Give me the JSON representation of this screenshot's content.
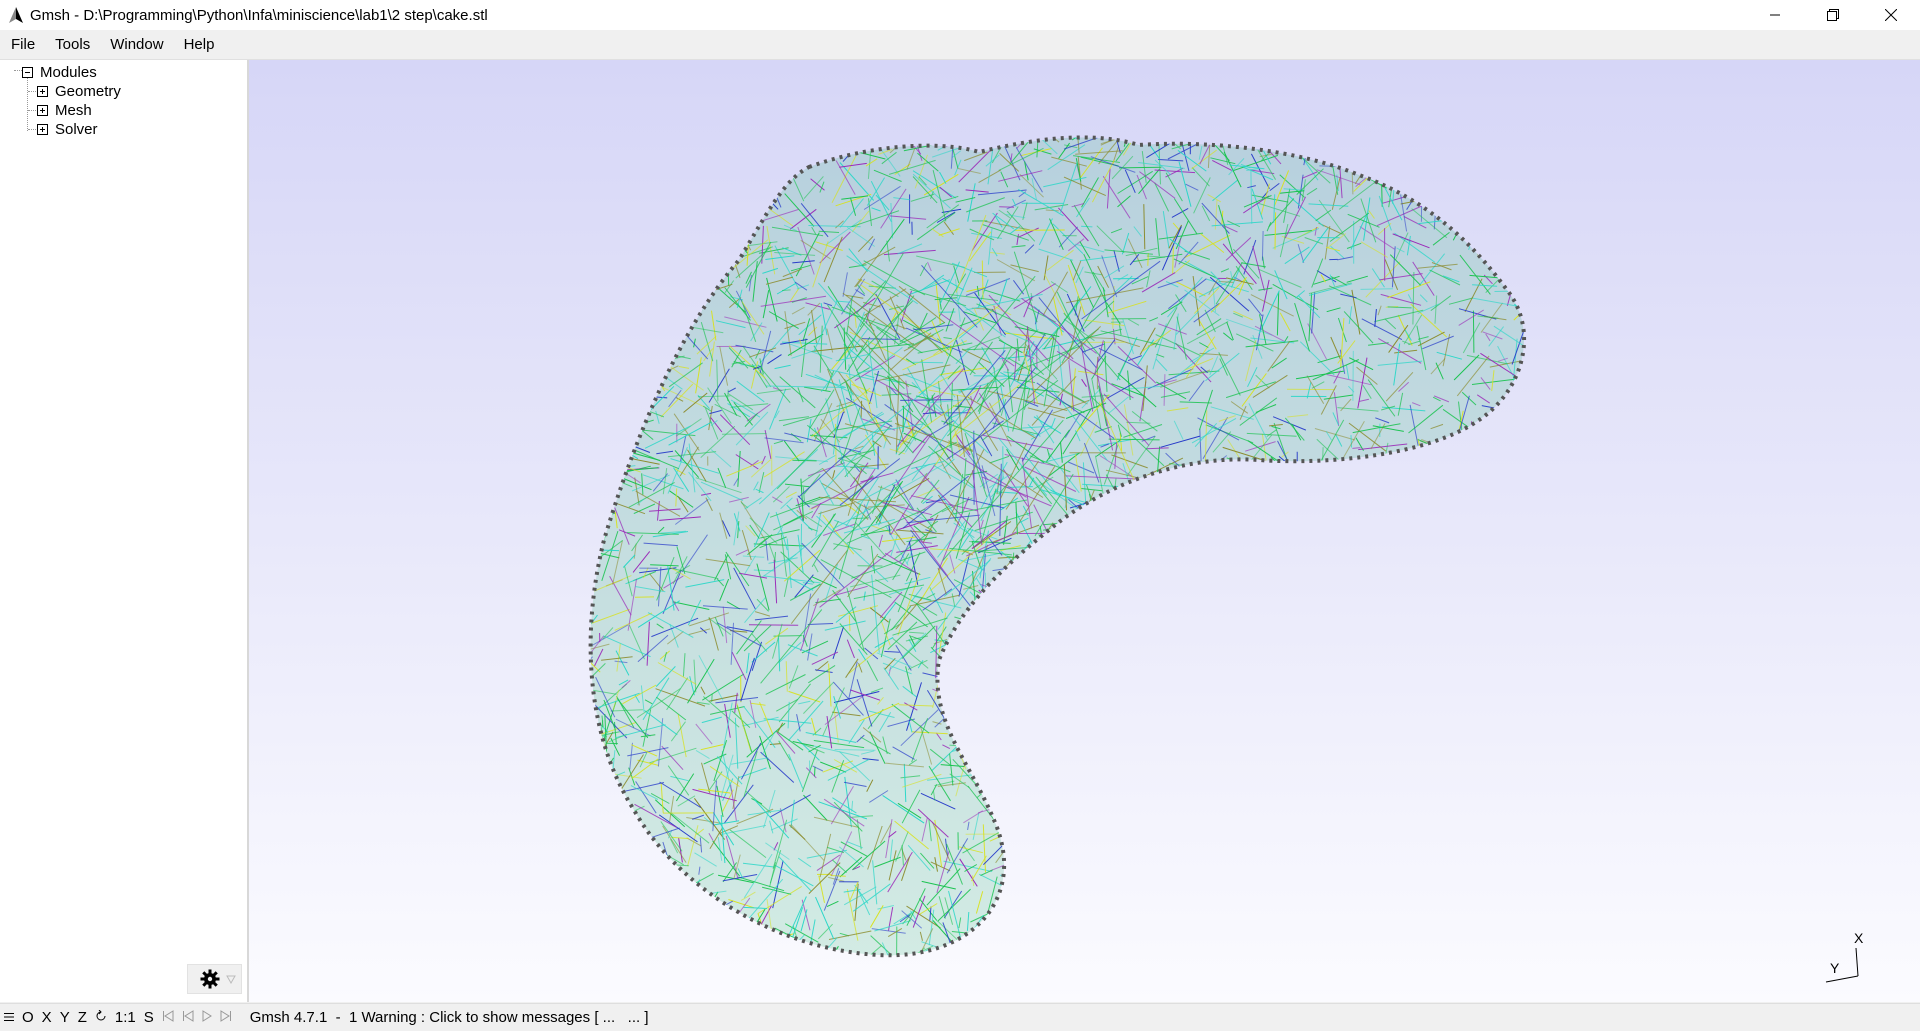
{
  "window": {
    "title": "Gmsh - D:\\Programming\\Python\\Infa\\miniscience\\lab1\\2 step\\cake.stl",
    "controls": [
      "minimize",
      "restore",
      "close"
    ]
  },
  "menu": [
    "File",
    "Tools",
    "Window",
    "Help"
  ],
  "tree": {
    "root": "Modules",
    "children": [
      "Geometry",
      "Mesh",
      "Solver"
    ]
  },
  "axes": {
    "x": "X",
    "y": "Y"
  },
  "status": {
    "buttons": [
      "O",
      "X",
      "Y",
      "Z",
      "1:1",
      "S"
    ],
    "message": "Gmsh 4.7.1  -  1 Warning : Click to show messages [ ...   ... ]"
  },
  "colors": {
    "mesh_primary": "#19c34f",
    "mesh_secondary": "#2ad7c8",
    "mesh_blue": "#2438c9",
    "mesh_purple": "#9a28b8",
    "mesh_yellow": "#d8e21e",
    "mesh_olive": "#8a8a2a",
    "viewport_top": "#d6d6f7",
    "viewport_bottom": "#fbfbff"
  }
}
